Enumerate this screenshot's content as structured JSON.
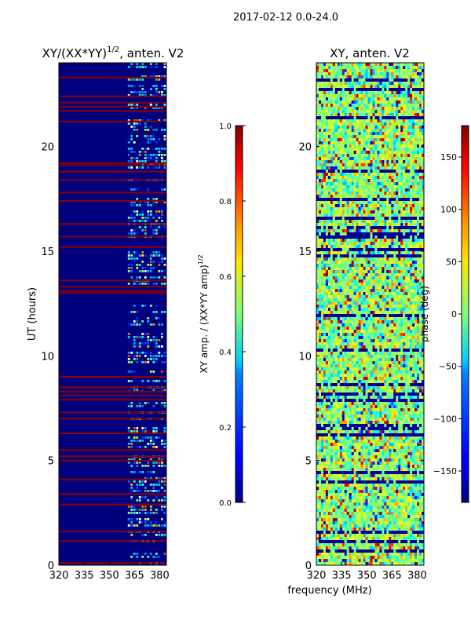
{
  "suptitle": "2017-02-12 0.0-24.0",
  "shared_xlabel": "frequency (MHz)",
  "ylabel": "UT (hours)",
  "chart_data": [
    {
      "type": "heatmap",
      "title_main": "XY/(XX*YY)",
      "title_exp": "1/2",
      "title_tail": ", anten. V2",
      "xlim": [
        320,
        384
      ],
      "ylim": [
        0,
        24
      ],
      "xticks": [
        320,
        335,
        350,
        365,
        380
      ],
      "yticks": [
        0,
        5,
        10,
        15,
        20
      ],
      "active_band_start_mhz": 361,
      "saturated_rows_hours": [
        0.1,
        1.15,
        1.6,
        2.9,
        3.4,
        4.1,
        5.0,
        5.2,
        5.5,
        6.3,
        7.0,
        7.3,
        7.9,
        8.1,
        8.3,
        8.5,
        9.0,
        13.0,
        13.1,
        13.3,
        13.6,
        15.2,
        15.7,
        16.3,
        17.4,
        17.8,
        18.4,
        18.8,
        19.1,
        19.2,
        21.2,
        21.7,
        21.9,
        22.1,
        22.4,
        23.3
      ],
      "colorbar": {
        "label_main": "XY amp. / (XX*YY amp)",
        "label_exp": "1/2",
        "range": [
          0.0,
          1.0
        ],
        "ticks": [
          "0.0",
          "0.2",
          "0.4",
          "0.6",
          "0.8",
          "1.0"
        ]
      }
    },
    {
      "type": "heatmap",
      "title": "XY, anten. V2",
      "xlim": [
        320,
        384
      ],
      "ylim": [
        0,
        24
      ],
      "xticks": [
        320,
        335,
        350,
        365,
        380
      ],
      "yticks": [
        0,
        5,
        10,
        15,
        20
      ],
      "colorbar": {
        "label": "phase (deg)",
        "range": [
          -180,
          180
        ],
        "ticks": [
          "150",
          "100",
          "50",
          "0",
          "−50",
          "−100",
          "−150"
        ],
        "tick_values": [
          150,
          100,
          50,
          0,
          -50,
          -100,
          -150
        ]
      }
    }
  ]
}
